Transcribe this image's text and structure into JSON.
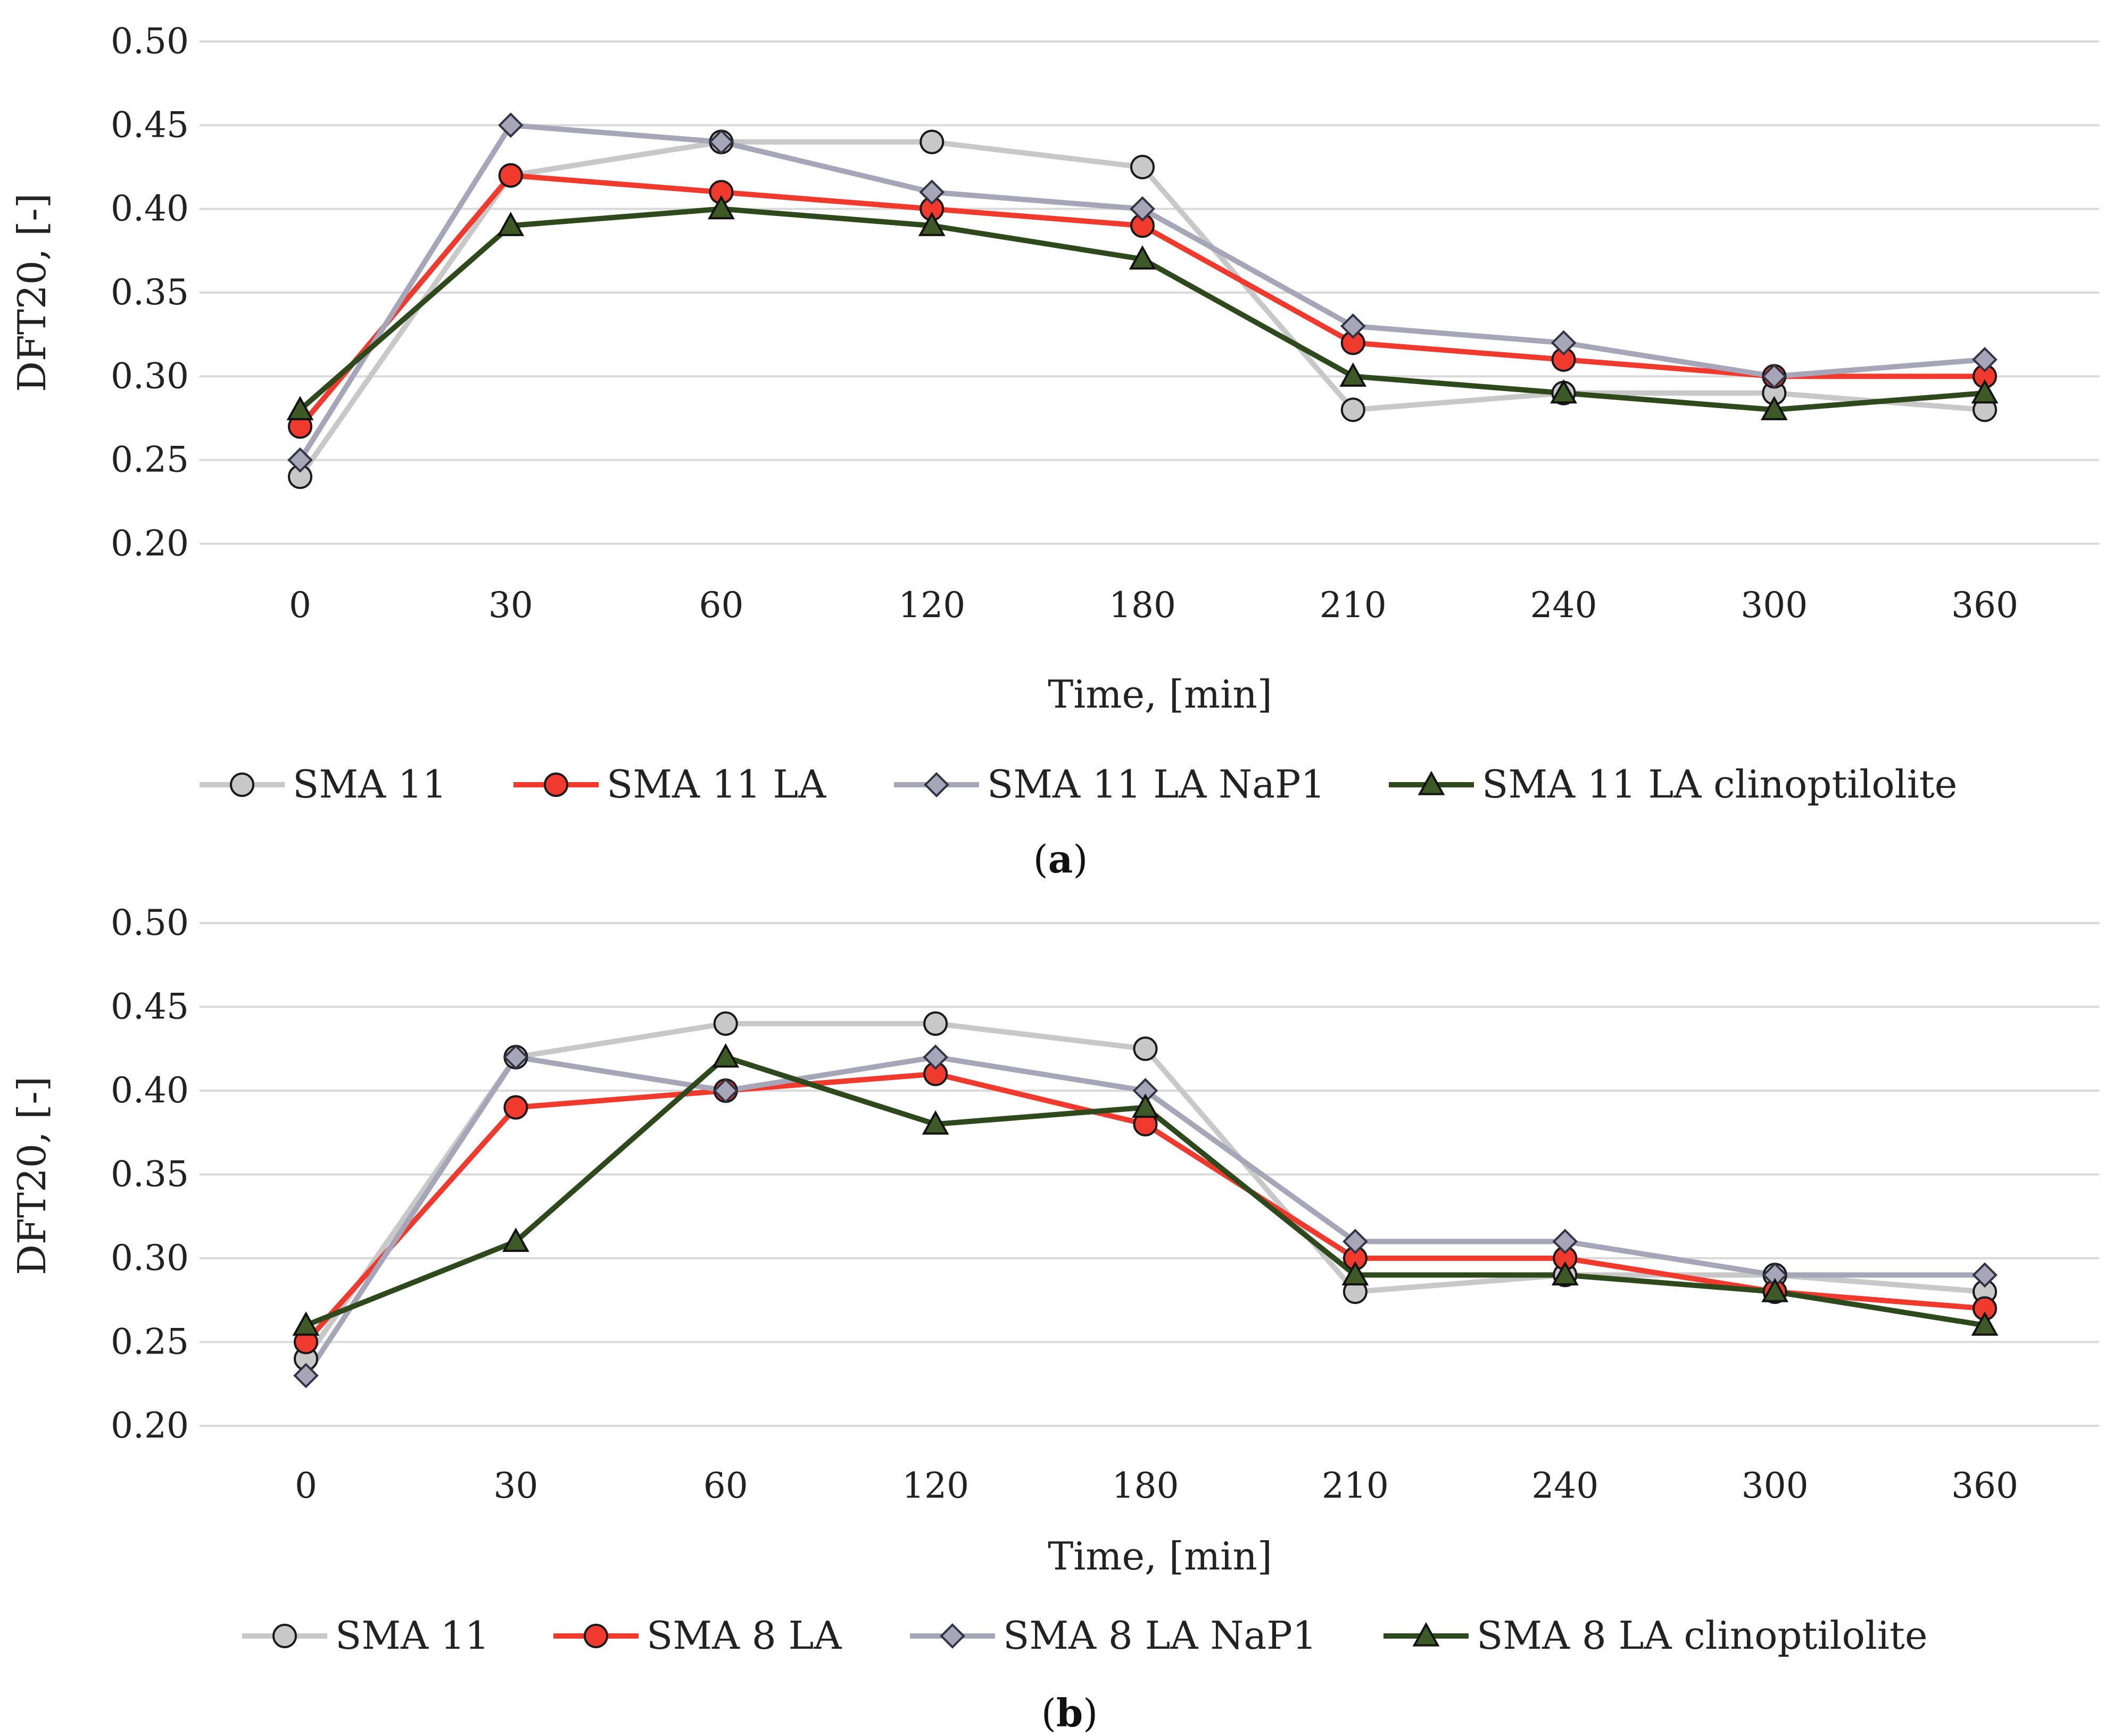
{
  "chart_data": [
    {
      "type": "line",
      "title": "",
      "caption_letter": "a",
      "xlabel": "Time, [min]",
      "ylabel": "DFT20, [-]",
      "categories": [
        "0",
        "30",
        "60",
        "120",
        "180",
        "210",
        "240",
        "300",
        "360"
      ],
      "ylim": [
        0.2,
        0.5
      ],
      "yticks": [
        "0.20",
        "0.25",
        "0.30",
        "0.35",
        "0.40",
        "0.45",
        "0.50"
      ],
      "grid": true,
      "legend_position": "bottom",
      "series": [
        {
          "name": "SMA 11",
          "marker": "circle",
          "color": "#c8c8c8",
          "marker_fill": "#c8c8c8",
          "values": [
            0.24,
            0.42,
            0.44,
            0.44,
            0.425,
            0.28,
            0.29,
            0.29,
            0.28
          ]
        },
        {
          "name": "SMA 11 LA",
          "marker": "circle",
          "color": "#f03a2e",
          "marker_fill": "#f03a2e",
          "values": [
            0.27,
            0.42,
            0.41,
            0.4,
            0.39,
            0.32,
            0.31,
            0.3,
            0.3
          ]
        },
        {
          "name": "SMA 11 LA NaP1",
          "marker": "diamond",
          "color": "#a6a6b8",
          "marker_fill": "#a6a6b8",
          "values": [
            0.25,
            0.45,
            0.44,
            0.41,
            0.4,
            0.33,
            0.32,
            0.3,
            0.31
          ]
        },
        {
          "name": "SMA 11 LA clinoptilolite",
          "marker": "triangle",
          "color": "#2e4a1c",
          "marker_fill": "#3d5a26",
          "values": [
            0.28,
            0.39,
            0.4,
            0.39,
            0.37,
            0.3,
            0.29,
            0.28,
            0.29
          ]
        }
      ]
    },
    {
      "type": "line",
      "title": "",
      "caption_letter": "b",
      "xlabel": "Time, [min]",
      "ylabel": "DFT20, [-]",
      "categories": [
        "0",
        "30",
        "60",
        "120",
        "180",
        "210",
        "240",
        "300",
        "360"
      ],
      "ylim": [
        0.2,
        0.5
      ],
      "yticks": [
        "0.20",
        "0.25",
        "0.30",
        "0.35",
        "0.40",
        "0.45",
        "0.50"
      ],
      "grid": true,
      "legend_position": "bottom",
      "series": [
        {
          "name": "SMA 11",
          "marker": "circle",
          "color": "#c8c8c8",
          "marker_fill": "#c8c8c8",
          "values": [
            0.24,
            0.42,
            0.44,
            0.44,
            0.425,
            0.28,
            0.29,
            0.29,
            0.28
          ]
        },
        {
          "name": "SMA 8 LA",
          "marker": "circle",
          "color": "#f03a2e",
          "marker_fill": "#f03a2e",
          "values": [
            0.25,
            0.39,
            0.4,
            0.41,
            0.38,
            0.3,
            0.3,
            0.28,
            0.27
          ]
        },
        {
          "name": "SMA 8 LA NaP1",
          "marker": "diamond",
          "color": "#a6a6b8",
          "marker_fill": "#a6a6b8",
          "values": [
            0.23,
            0.42,
            0.4,
            0.42,
            0.4,
            0.31,
            0.31,
            0.29,
            0.29
          ]
        },
        {
          "name": "SMA 8 LA clinoptilolite",
          "marker": "triangle",
          "color": "#2e4a1c",
          "marker_fill": "#3d5a26",
          "values": [
            0.26,
            0.31,
            0.42,
            0.38,
            0.39,
            0.29,
            0.29,
            0.28,
            0.26
          ]
        }
      ]
    }
  ]
}
